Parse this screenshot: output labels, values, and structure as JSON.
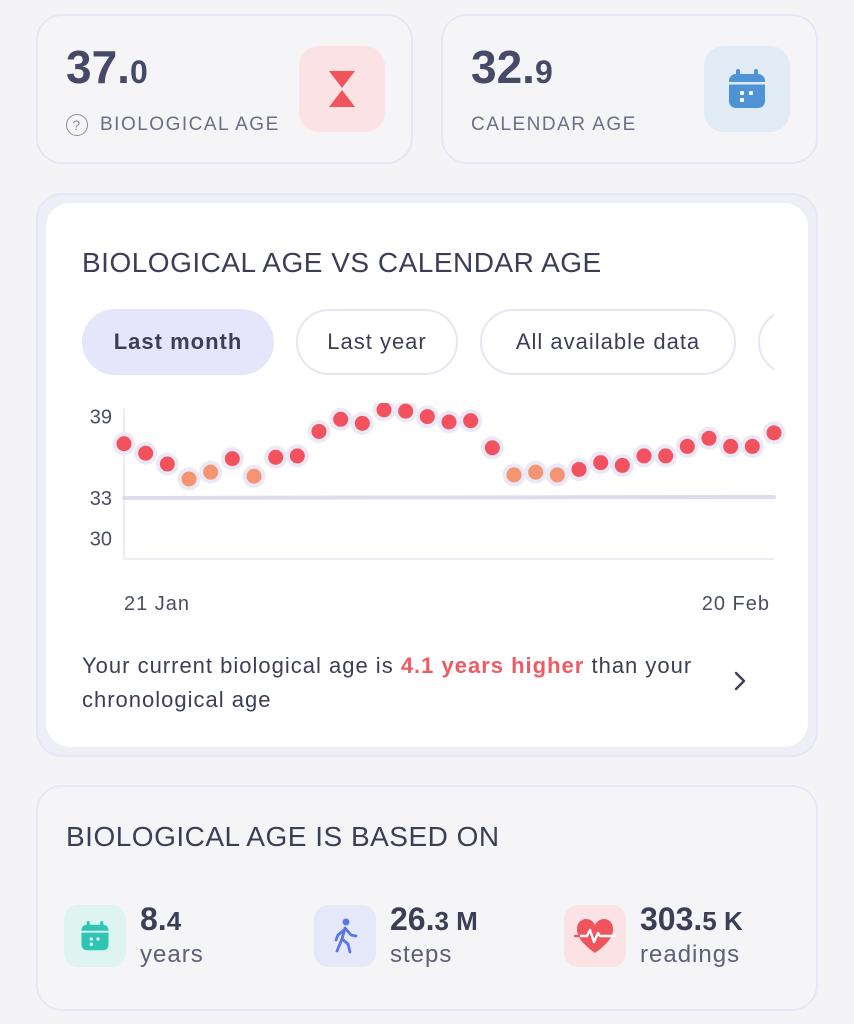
{
  "bio_card": {
    "value_int": "37.",
    "value_dec": "0",
    "label": "BIOLOGICAL AGE",
    "help_glyph": "?",
    "icon": "hourglass-icon",
    "accent": "#f0555d"
  },
  "cal_card": {
    "value_int": "32.",
    "value_dec": "9",
    "label": "CALENDAR AGE",
    "icon": "calendar-icon",
    "accent": "#4f93d6"
  },
  "chart_card": {
    "title": "BIOLOGICAL AGE VS CALENDAR AGE",
    "chips": [
      {
        "label": "Last month",
        "active": true
      },
      {
        "label": "Last year",
        "active": false
      },
      {
        "label": "All available data",
        "active": false
      }
    ],
    "summary_prefix": "Your current biological age is ",
    "summary_highlight": "4.1 years higher",
    "summary_suffix": " than your chronological age"
  },
  "chart_data": {
    "type": "scatter",
    "x_labels": [
      "21 Jan",
      "20 Feb"
    ],
    "y_ticks": [
      39,
      33,
      30
    ],
    "ylim": [
      28.5,
      40
    ],
    "reference_line": {
      "value": 33.0,
      "color": "#dcdcee"
    },
    "biological_age": [
      37.0,
      36.3,
      35.5,
      34.4,
      34.9,
      35.9,
      34.6,
      36.0,
      36.1,
      37.9,
      38.8,
      38.5,
      39.5,
      39.4,
      39.0,
      38.6,
      38.7,
      36.7,
      34.7,
      34.9,
      34.7,
      35.1,
      35.6,
      35.4,
      36.1,
      36.1,
      36.8,
      37.4,
      36.8,
      36.8,
      37.8
    ],
    "point_colors": {
      "high": "#f2525e",
      "mid": "#f49470"
    },
    "orange_indices": [
      3,
      4,
      6,
      18,
      19,
      20
    ]
  },
  "based_card": {
    "title": "BIOLOGICAL AGE IS BASED ON",
    "metrics": [
      {
        "value_int": "8.",
        "value_dec": "4",
        "label": "years",
        "icon": "calendar-icon",
        "bg": "#ddf4f0",
        "color": "#2ec5b2"
      },
      {
        "value_int": "26.",
        "value_dec": "3 M",
        "label": "steps",
        "icon": "walking-icon",
        "bg": "#e4e8f8",
        "color": "#5a78e3"
      },
      {
        "value_int": "303.",
        "value_dec": "5 K",
        "label": "readings",
        "icon": "heart-rate-icon",
        "bg": "#fbe2e4",
        "color": "#f0555d"
      }
    ]
  }
}
